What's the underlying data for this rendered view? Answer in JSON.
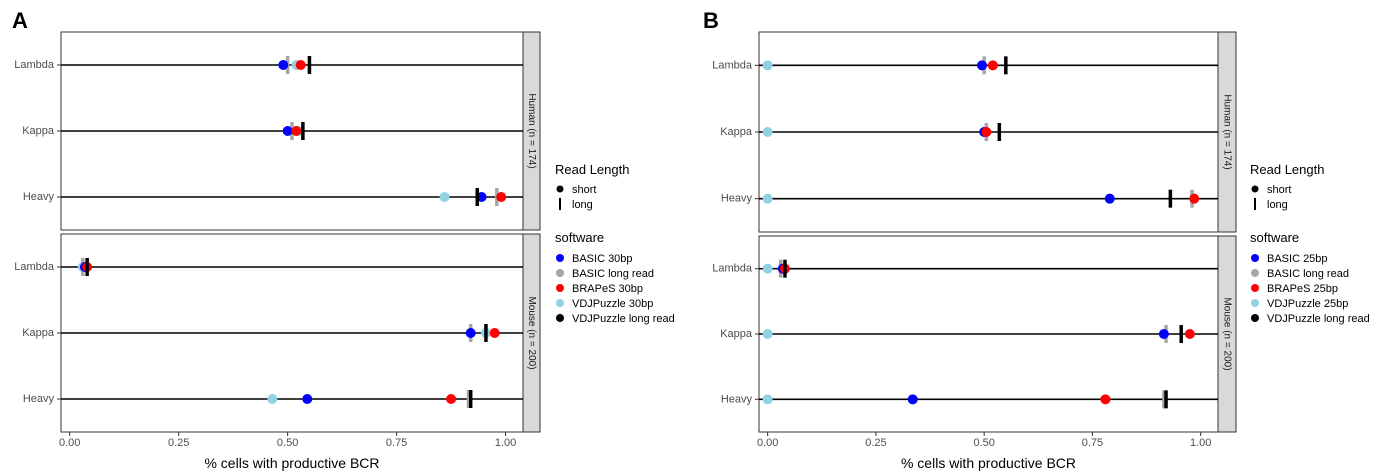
{
  "chart_data": [
    {
      "type": "scatter",
      "panel_label": "A",
      "xlabel": "% cells with productive BCR",
      "xlim": [
        -0.02,
        1.04
      ],
      "x_ticks": [
        "0.00",
        "0.25",
        "0.50",
        "0.75",
        "1.00"
      ],
      "categories": [
        "Lambda",
        "Kappa",
        "Heavy"
      ],
      "facets": [
        {
          "label": "Human (n = 174)",
          "points": {
            "Lambda": {
              "BASIC_short": 0.49,
              "BASIC_long": 0.5,
              "BRAPeS_short": 0.53,
              "VDJPuzzle_short": 0.52,
              "VDJPuzzle_long": 0.55
            },
            "Kappa": {
              "BASIC_short": 0.5,
              "BASIC_long": 0.51,
              "BRAPeS_short": 0.52,
              "VDJPuzzle_short": 0.525,
              "VDJPuzzle_long": 0.535
            },
            "Heavy": {
              "BASIC_short": 0.945,
              "BASIC_long": 0.98,
              "BRAPeS_short": 0.99,
              "VDJPuzzle_short": 0.86,
              "VDJPuzzle_long": 0.935
            }
          }
        },
        {
          "label": "Mouse (n = 200)",
          "points": {
            "Lambda": {
              "BASIC_short": 0.035,
              "BASIC_long": 0.03,
              "BRAPeS_short": 0.04,
              "VDJPuzzle_short": 0.03,
              "VDJPuzzle_long": 0.04
            },
            "Kappa": {
              "BASIC_short": 0.92,
              "BASIC_long": 0.92,
              "BRAPeS_short": 0.975,
              "VDJPuzzle_short": 0.955,
              "VDJPuzzle_long": 0.955
            },
            "Heavy": {
              "BASIC_short": 0.545,
              "BASIC_long": 0.915,
              "BRAPeS_short": 0.875,
              "VDJPuzzle_short": 0.465,
              "VDJPuzzle_long": 0.92
            }
          }
        }
      ],
      "legend_read_length": {
        "title": "Read Length",
        "items": [
          "short",
          "long"
        ]
      },
      "legend_software": {
        "title": "software",
        "items": [
          {
            "key": "BASIC_short",
            "label": "BASIC 30bp",
            "color": "#0000ff"
          },
          {
            "key": "BASIC_long",
            "label": "BASIC long read",
            "color": "#a6a6a6"
          },
          {
            "key": "BRAPeS_short",
            "label": "BRAPeS 30bp",
            "color": "#ff0000"
          },
          {
            "key": "VDJPuzzle_short",
            "label": "VDJPuzzle 30bp",
            "color": "#8fd3e3"
          },
          {
            "key": "VDJPuzzle_long",
            "label": "VDJPuzzle long read",
            "color": "#000000"
          }
        ]
      }
    },
    {
      "type": "scatter",
      "panel_label": "B",
      "xlabel": "% cells with productive BCR",
      "xlim": [
        -0.02,
        1.04
      ],
      "x_ticks": [
        "0.00",
        "0.25",
        "0.50",
        "0.75",
        "1.00"
      ],
      "categories": [
        "Lambda",
        "Kappa",
        "Heavy"
      ],
      "facets": [
        {
          "label": "Human (n = 174)",
          "points": {
            "Lambda": {
              "BASIC_short": 0.495,
              "BASIC_long": 0.5,
              "BRAPeS_short": 0.52,
              "VDJPuzzle_short": 0.0,
              "VDJPuzzle_long": 0.55
            },
            "Kappa": {
              "BASIC_short": 0.5,
              "BASIC_long": 0.505,
              "BRAPeS_short": 0.505,
              "VDJPuzzle_short": 0.0,
              "VDJPuzzle_long": 0.535
            },
            "Heavy": {
              "BASIC_short": 0.79,
              "BASIC_long": 0.98,
              "BRAPeS_short": 0.985,
              "VDJPuzzle_short": 0.0,
              "VDJPuzzle_long": 0.93
            }
          }
        },
        {
          "label": "Mouse (n = 200)",
          "points": {
            "Lambda": {
              "BASIC_short": 0.035,
              "BASIC_long": 0.03,
              "BRAPeS_short": 0.04,
              "VDJPuzzle_short": 0.0,
              "VDJPuzzle_long": 0.04
            },
            "Kappa": {
              "BASIC_short": 0.915,
              "BASIC_long": 0.92,
              "BRAPeS_short": 0.975,
              "VDJPuzzle_short": 0.0,
              "VDJPuzzle_long": 0.955
            },
            "Heavy": {
              "BASIC_short": 0.335,
              "BASIC_long": 0.915,
              "BRAPeS_short": 0.78,
              "VDJPuzzle_short": 0.0,
              "VDJPuzzle_long": 0.92
            }
          }
        }
      ],
      "legend_read_length": {
        "title": "Read Length",
        "items": [
          "short",
          "long"
        ]
      },
      "legend_software": {
        "title": "software",
        "items": [
          {
            "key": "BASIC_short",
            "label": "BASIC 25bp",
            "color": "#0000ff"
          },
          {
            "key": "BASIC_long",
            "label": "BASIC long read",
            "color": "#a6a6a6"
          },
          {
            "key": "BRAPeS_short",
            "label": "BRAPeS 25bp",
            "color": "#ff0000"
          },
          {
            "key": "VDJPuzzle_short",
            "label": "VDJPuzzle 25bp",
            "color": "#8fd3e3"
          },
          {
            "key": "VDJPuzzle_long",
            "label": "VDJPuzzle long read",
            "color": "#000000"
          }
        ]
      }
    }
  ]
}
